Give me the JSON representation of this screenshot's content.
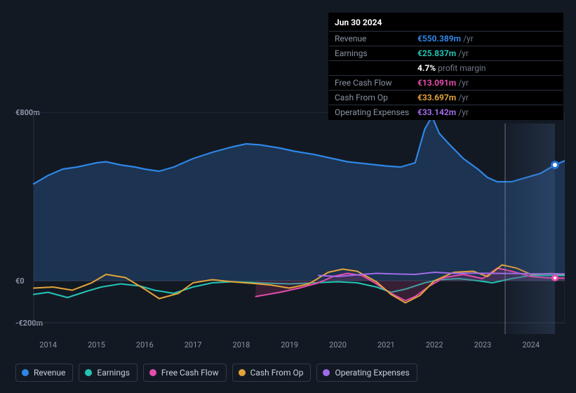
{
  "tooltip": {
    "date": "Jun 30 2024",
    "suffix_yr": "/yr",
    "rows": [
      {
        "label": "Revenue",
        "value": "€550.389m",
        "color": "#2f86e6",
        "suffix": "/yr"
      },
      {
        "label": "Earnings",
        "value": "€25.837m",
        "color": "#23c4b6",
        "suffix": "/yr"
      },
      {
        "label": "",
        "value": "4.7%",
        "color": "#ffffff",
        "suffix": "profit margin"
      },
      {
        "label": "Free Cash Flow",
        "value": "€13.091m",
        "color": "#e64cad",
        "suffix": "/yr"
      },
      {
        "label": "Cash From Op",
        "value": "€33.697m",
        "color": "#e2a33a",
        "suffix": "/yr"
      },
      {
        "label": "Operating Expenses",
        "value": "€33.142m",
        "color": "#a06be8",
        "suffix": "/yr"
      }
    ]
  },
  "chart": {
    "type": "area-line",
    "background_color": "#131923",
    "plot_bg": "#131923",
    "grid_color": "#2a3240",
    "ylim": [
      -200,
      800
    ],
    "y_ticks": [
      {
        "v": 800,
        "label": "€800m"
      },
      {
        "v": 0,
        "label": "€0"
      },
      {
        "v": -200,
        "label": "-€200m"
      }
    ],
    "x_years": [
      2014,
      2015,
      2016,
      2017,
      2018,
      2019,
      2020,
      2021,
      2022,
      2023,
      2024
    ],
    "cursor_year": 2024.5,
    "series": [
      {
        "name": "Revenue",
        "color": "#2f86e6",
        "fill": "rgba(36,72,120,0.55)",
        "width": 2.2,
        "data": [
          [
            2013.7,
            460
          ],
          [
            2014.0,
            500
          ],
          [
            2014.3,
            530
          ],
          [
            2014.6,
            540
          ],
          [
            2015.0,
            560
          ],
          [
            2015.2,
            565
          ],
          [
            2015.5,
            550
          ],
          [
            2015.8,
            540
          ],
          [
            2016.0,
            530
          ],
          [
            2016.3,
            520
          ],
          [
            2016.6,
            540
          ],
          [
            2017.0,
            580
          ],
          [
            2017.4,
            610
          ],
          [
            2017.8,
            635
          ],
          [
            2018.1,
            650
          ],
          [
            2018.4,
            645
          ],
          [
            2018.8,
            630
          ],
          [
            2019.1,
            615
          ],
          [
            2019.5,
            600
          ],
          [
            2019.9,
            580
          ],
          [
            2020.2,
            565
          ],
          [
            2020.6,
            555
          ],
          [
            2021.0,
            545
          ],
          [
            2021.3,
            540
          ],
          [
            2021.6,
            560
          ],
          [
            2021.8,
            720
          ],
          [
            2021.95,
            780
          ],
          [
            2022.1,
            700
          ],
          [
            2022.3,
            650
          ],
          [
            2022.6,
            580
          ],
          [
            2022.9,
            530
          ],
          [
            2023.1,
            490
          ],
          [
            2023.3,
            470
          ],
          [
            2023.6,
            470
          ],
          [
            2023.9,
            490
          ],
          [
            2024.2,
            510
          ],
          [
            2024.5,
            550
          ],
          [
            2024.7,
            570
          ]
        ]
      },
      {
        "name": "Earnings",
        "color": "#23c4b6",
        "fill": "none",
        "width": 2,
        "data": [
          [
            2013.7,
            -65
          ],
          [
            2014.0,
            -55
          ],
          [
            2014.4,
            -80
          ],
          [
            2014.8,
            -50
          ],
          [
            2015.1,
            -30
          ],
          [
            2015.5,
            -15
          ],
          [
            2015.9,
            -25
          ],
          [
            2016.2,
            -45
          ],
          [
            2016.6,
            -60
          ],
          [
            2017.0,
            -30
          ],
          [
            2017.4,
            -10
          ],
          [
            2017.8,
            -5
          ],
          [
            2018.2,
            -8
          ],
          [
            2018.6,
            -12
          ],
          [
            2019.0,
            -15
          ],
          [
            2019.5,
            -10
          ],
          [
            2020.0,
            -5
          ],
          [
            2020.4,
            -10
          ],
          [
            2020.8,
            -30
          ],
          [
            2021.1,
            -55
          ],
          [
            2021.4,
            -40
          ],
          [
            2021.8,
            -10
          ],
          [
            2022.1,
            5
          ],
          [
            2022.5,
            10
          ],
          [
            2022.9,
            0
          ],
          [
            2023.2,
            -10
          ],
          [
            2023.6,
            10
          ],
          [
            2024.0,
            25
          ],
          [
            2024.4,
            26
          ],
          [
            2024.7,
            25
          ]
        ]
      },
      {
        "name": "Free Cash Flow",
        "color": "#e64cad",
        "fill": "rgba(150,50,100,0.28)",
        "width": 2,
        "data": [
          [
            2018.3,
            -75
          ],
          [
            2018.8,
            -55
          ],
          [
            2019.2,
            -35
          ],
          [
            2019.6,
            -10
          ],
          [
            2019.9,
            20
          ],
          [
            2020.2,
            35
          ],
          [
            2020.5,
            25
          ],
          [
            2020.8,
            -15
          ],
          [
            2021.1,
            -60
          ],
          [
            2021.4,
            -95
          ],
          [
            2021.6,
            -75
          ],
          [
            2021.9,
            -25
          ],
          [
            2022.2,
            15
          ],
          [
            2022.6,
            30
          ],
          [
            2023.0,
            10
          ],
          [
            2023.3,
            60
          ],
          [
            2023.6,
            45
          ],
          [
            2024.0,
            20
          ],
          [
            2024.4,
            13
          ],
          [
            2024.7,
            12
          ]
        ]
      },
      {
        "name": "Cash From Op",
        "color": "#e2a33a",
        "fill": "none",
        "width": 2,
        "data": [
          [
            2013.7,
            -35
          ],
          [
            2014.1,
            -30
          ],
          [
            2014.5,
            -45
          ],
          [
            2014.9,
            -10
          ],
          [
            2015.2,
            30
          ],
          [
            2015.6,
            15
          ],
          [
            2016.0,
            -40
          ],
          [
            2016.3,
            -85
          ],
          [
            2016.7,
            -60
          ],
          [
            2017.0,
            -10
          ],
          [
            2017.4,
            5
          ],
          [
            2017.8,
            -5
          ],
          [
            2018.2,
            -12
          ],
          [
            2018.6,
            -20
          ],
          [
            2019.0,
            -35
          ],
          [
            2019.4,
            -15
          ],
          [
            2019.8,
            40
          ],
          [
            2020.1,
            55
          ],
          [
            2020.4,
            45
          ],
          [
            2020.8,
            -5
          ],
          [
            2021.1,
            -65
          ],
          [
            2021.4,
            -105
          ],
          [
            2021.7,
            -70
          ],
          [
            2022.0,
            0
          ],
          [
            2022.4,
            40
          ],
          [
            2022.8,
            45
          ],
          [
            2023.1,
            20
          ],
          [
            2023.4,
            75
          ],
          [
            2023.7,
            60
          ],
          [
            2024.0,
            30
          ],
          [
            2024.4,
            34
          ],
          [
            2024.7,
            30
          ]
        ]
      },
      {
        "name": "Operating Expenses",
        "color": "#a06be8",
        "fill": "none",
        "width": 2,
        "data": [
          [
            2019.6,
            25
          ],
          [
            2020.0,
            20
          ],
          [
            2020.4,
            28
          ],
          [
            2020.8,
            35
          ],
          [
            2021.2,
            32
          ],
          [
            2021.6,
            30
          ],
          [
            2022.0,
            40
          ],
          [
            2022.4,
            35
          ],
          [
            2022.8,
            36
          ],
          [
            2023.2,
            35
          ],
          [
            2023.6,
            34
          ],
          [
            2024.0,
            33
          ],
          [
            2024.4,
            33
          ],
          [
            2024.7,
            32
          ]
        ]
      }
    ]
  },
  "legend": [
    {
      "label": "Revenue",
      "color": "#2f86e6"
    },
    {
      "label": "Earnings",
      "color": "#23c4b6"
    },
    {
      "label": "Free Cash Flow",
      "color": "#e64cad"
    },
    {
      "label": "Cash From Op",
      "color": "#e2a33a"
    },
    {
      "label": "Operating Expenses",
      "color": "#a06be8"
    }
  ]
}
